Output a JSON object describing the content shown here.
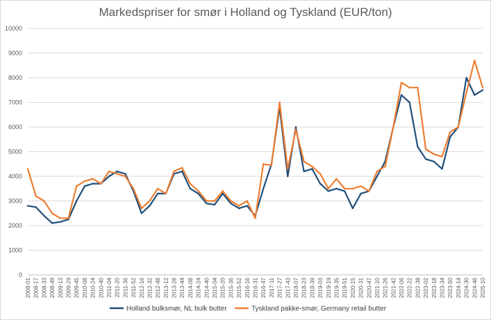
{
  "chart_data": {
    "type": "line",
    "title": "Markedspriser for smør i Holland og Tyskland (EUR/ton)",
    "xlabel": "",
    "ylabel": "",
    "ylim": [
      0,
      10000
    ],
    "yticks": [
      0,
      1000,
      2000,
      3000,
      4000,
      5000,
      6000,
      7000,
      8000,
      9000,
      10000
    ],
    "grid": "horizontal",
    "legend": "bottom",
    "categories": [
      "2008-01",
      "2008-17",
      "2008-33",
      "2008-49",
      "2009-13",
      "2009-29",
      "2009-45",
      "2010-08",
      "2010-24",
      "2010-40",
      "2011-04",
      "2011-20",
      "2011-36",
      "2011-52",
      "2012-16",
      "2012-32",
      "2012-48",
      "2013-12",
      "2013-28",
      "2013-44",
      "2014-08",
      "2014-24",
      "2014-40",
      "2015-04",
      "2015-20",
      "2015-36",
      "2015-52",
      "2016-16",
      "2016-31",
      "2016-47",
      "2017-11",
      "2017-27",
      "2017-43",
      "2018-07",
      "2018-23",
      "2018-39",
      "2019-03",
      "2019-19",
      "2019-35",
      "2019-51",
      "2020-15",
      "2020-31",
      "2020-47",
      "2021-10",
      "2021-26",
      "2021-42",
      "2022-06",
      "2022-22",
      "2022-38",
      "2023-02",
      "2023-18",
      "2023-34",
      "2023-50",
      "2024-14",
      "2024-30",
      "2024-46",
      "2025-10"
    ],
    "series": [
      {
        "name": "Holland bulksmør, NL bulk butter",
        "color": "#1f4e79",
        "values": [
          2800,
          2750,
          2400,
          2100,
          2150,
          2250,
          3000,
          3600,
          3700,
          3700,
          4000,
          4200,
          4100,
          3400,
          2500,
          2800,
          3300,
          3300,
          4100,
          4200,
          3500,
          3300,
          2900,
          2850,
          3300,
          2900,
          2700,
          2800,
          2400,
          3500,
          4500,
          6800,
          4000,
          6000,
          4200,
          4300,
          3700,
          3400,
          3500,
          3400,
          2700,
          3300,
          3400,
          4000,
          4600,
          6000,
          7300,
          7000,
          5200,
          4700,
          4600,
          4300,
          5600,
          6000,
          8000,
          7300,
          7500
        ]
      },
      {
        "name": "Tyskland pakke-smør, Germany retail butter",
        "color": "#ed7d31",
        "values": [
          4300,
          3200,
          3000,
          2500,
          2300,
          2300,
          3600,
          3800,
          3900,
          3700,
          4200,
          4100,
          4000,
          3500,
          2700,
          3000,
          3500,
          3300,
          4200,
          4350,
          3700,
          3400,
          3000,
          3000,
          3400,
          3000,
          2800,
          3000,
          2300,
          4500,
          4450,
          7000,
          4300,
          5900,
          4600,
          4400,
          4100,
          3500,
          3900,
          3500,
          3500,
          3600,
          3400,
          4200,
          4400,
          6000,
          7800,
          7600,
          7600,
          5100,
          4900,
          4800,
          5800,
          6000,
          7400,
          8700,
          7600
        ]
      }
    ]
  }
}
